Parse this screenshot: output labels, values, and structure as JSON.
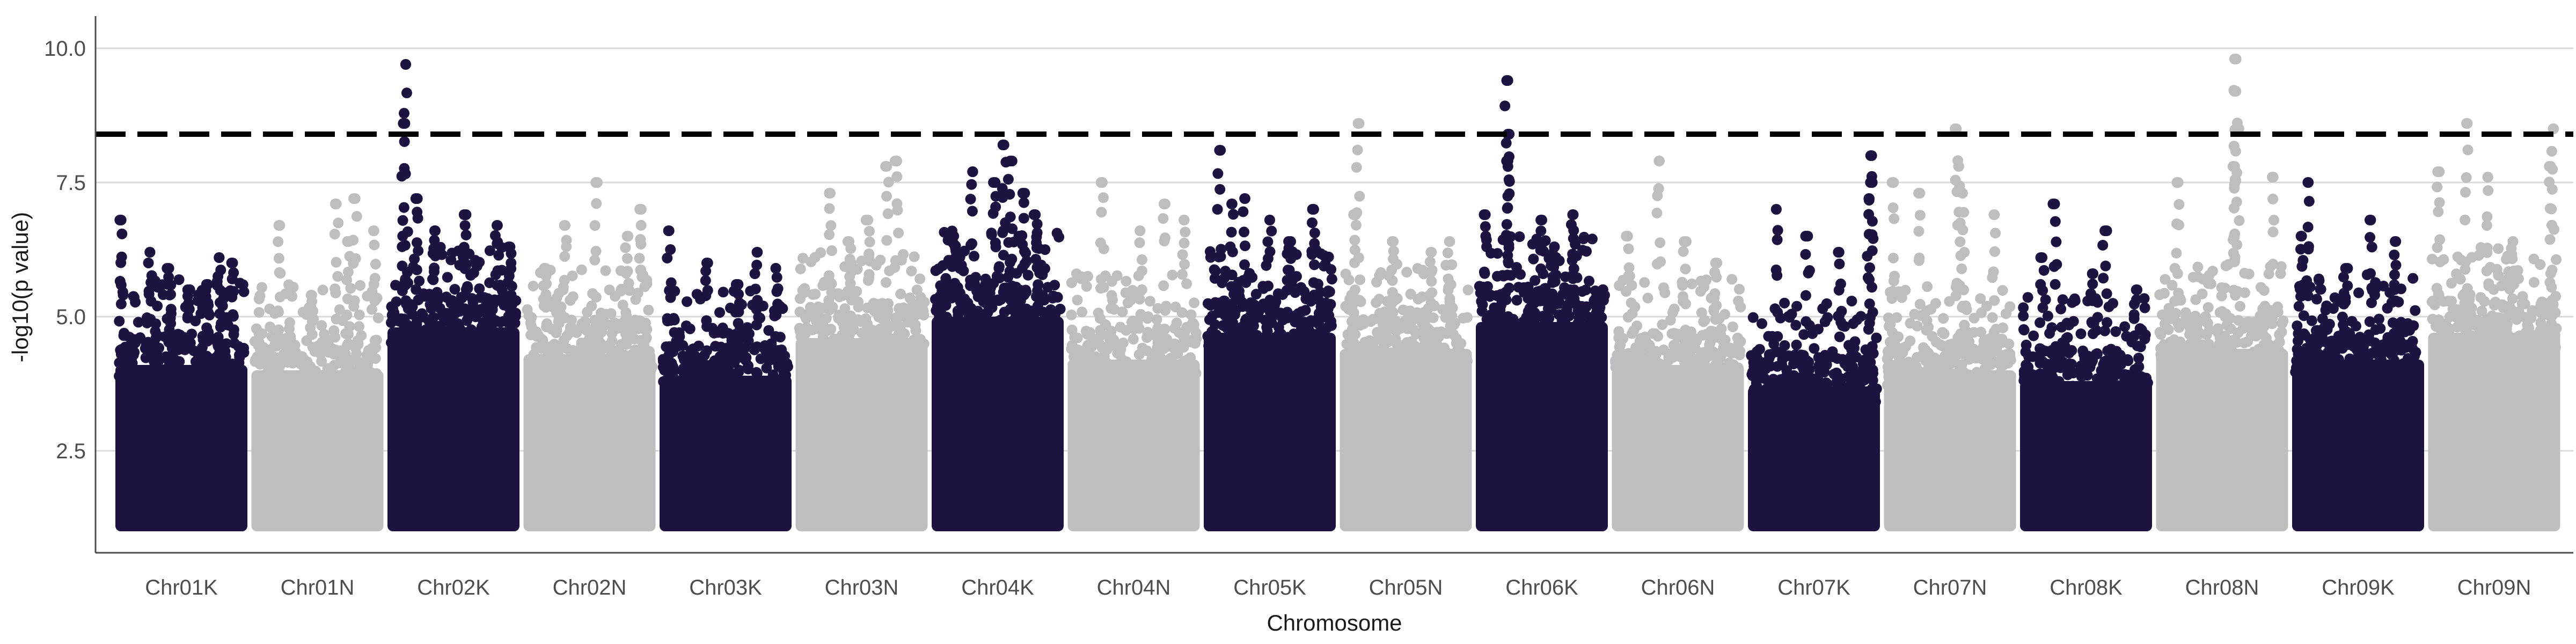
{
  "chart_data": {
    "type": "scatter",
    "subtype": "manhattan",
    "title": "",
    "xlabel": "Chromosome",
    "ylabel": "-log10(p value)",
    "ylim": [
      0.6,
      10.5
    ],
    "yticks": [
      2.5,
      5.0,
      7.5,
      10.0
    ],
    "ytick_labels": [
      "2.5",
      "5.0",
      "7.5",
      "10.0"
    ],
    "grid": "horizontal major gridlines only",
    "legend": "none",
    "threshold": 8.4,
    "threshold_style": "dashed black line",
    "colors": {
      "dark": "#1e1241",
      "light": "#bebebe",
      "threshold": "#000000",
      "grid": "#d9d9d9"
    },
    "categories": [
      "Chr01K",
      "Chr01N",
      "Chr02K",
      "Chr02N",
      "Chr03K",
      "Chr03N",
      "Chr04K",
      "Chr04N",
      "Chr05K",
      "Chr05N",
      "Chr06K",
      "Chr06N",
      "Chr07K",
      "Chr07N",
      "Chr08K",
      "Chr08N",
      "Chr09K",
      "Chr09N"
    ],
    "series": [
      {
        "chromosome": "Chr01K",
        "color": "dark",
        "bulk_top": 4.7,
        "peaks": [
          [
            0.02,
            6.8
          ],
          [
            0.25,
            6.2
          ],
          [
            0.4,
            5.9
          ],
          [
            0.7,
            5.6
          ],
          [
            0.8,
            6.1
          ],
          [
            0.9,
            6.0
          ],
          [
            0.55,
            5.5
          ]
        ]
      },
      {
        "chromosome": "Chr01N",
        "color": "light",
        "bulk_top": 4.6,
        "peaks": [
          [
            0.2,
            6.7
          ],
          [
            0.65,
            7.1
          ],
          [
            0.8,
            7.2
          ],
          [
            0.75,
            6.4
          ],
          [
            0.95,
            6.6
          ],
          [
            0.45,
            5.4
          ]
        ]
      },
      {
        "chromosome": "Chr02K",
        "color": "dark",
        "bulk_top": 5.4,
        "peaks": [
          [
            0.1,
            8.6
          ],
          [
            0.12,
            9.7
          ],
          [
            0.2,
            7.2
          ],
          [
            0.35,
            6.6
          ],
          [
            0.6,
            6.9
          ],
          [
            0.85,
            6.7
          ],
          [
            0.95,
            6.3
          ]
        ]
      },
      {
        "chromosome": "Chr02N",
        "color": "light",
        "bulk_top": 4.9,
        "peaks": [
          [
            0.3,
            6.7
          ],
          [
            0.55,
            7.5
          ],
          [
            0.8,
            6.5
          ],
          [
            0.9,
            7.0
          ],
          [
            0.15,
            5.9
          ]
        ]
      },
      {
        "chromosome": "Chr03K",
        "color": "dark",
        "bulk_top": 4.5,
        "peaks": [
          [
            0.05,
            6.6
          ],
          [
            0.35,
            6.0
          ],
          [
            0.6,
            5.6
          ],
          [
            0.75,
            6.2
          ],
          [
            0.9,
            5.9
          ]
        ]
      },
      {
        "chromosome": "Chr03N",
        "color": "light",
        "bulk_top": 5.2,
        "peaks": [
          [
            0.25,
            7.3
          ],
          [
            0.7,
            7.8
          ],
          [
            0.78,
            7.9
          ],
          [
            0.55,
            6.8
          ],
          [
            0.4,
            6.4
          ]
        ]
      },
      {
        "chromosome": "Chr04K",
        "color": "dark",
        "bulk_top": 5.6,
        "peaks": [
          [
            0.3,
            7.7
          ],
          [
            0.48,
            7.5
          ],
          [
            0.55,
            8.2
          ],
          [
            0.6,
            7.9
          ],
          [
            0.7,
            7.3
          ],
          [
            0.8,
            6.9
          ],
          [
            0.15,
            6.5
          ]
        ]
      },
      {
        "chromosome": "Chr04N",
        "color": "light",
        "bulk_top": 4.8,
        "peaks": [
          [
            0.25,
            7.5
          ],
          [
            0.55,
            6.6
          ],
          [
            0.75,
            7.1
          ],
          [
            0.9,
            6.8
          ]
        ]
      },
      {
        "chromosome": "Chr05K",
        "color": "dark",
        "bulk_top": 5.3,
        "peaks": [
          [
            0.1,
            8.1
          ],
          [
            0.2,
            7.1
          ],
          [
            0.3,
            7.2
          ],
          [
            0.5,
            6.8
          ],
          [
            0.85,
            7.0
          ],
          [
            0.65,
            6.4
          ]
        ]
      },
      {
        "chromosome": "Chr05N",
        "color": "light",
        "bulk_top": 5.0,
        "peaks": [
          [
            0.12,
            8.6
          ],
          [
            0.1,
            6.9
          ],
          [
            0.4,
            6.4
          ],
          [
            0.7,
            6.2
          ],
          [
            0.85,
            6.4
          ]
        ]
      },
      {
        "chromosome": "Chr06K",
        "color": "dark",
        "bulk_top": 5.5,
        "peaks": [
          [
            0.22,
            9.4
          ],
          [
            0.24,
            8.4
          ],
          [
            0.23,
            7.9
          ],
          [
            0.05,
            6.9
          ],
          [
            0.5,
            6.8
          ],
          [
            0.75,
            6.9
          ],
          [
            0.6,
            6.3
          ]
        ]
      },
      {
        "chromosome": "Chr06N",
        "color": "light",
        "bulk_top": 4.7,
        "peaks": [
          [
            0.1,
            6.5
          ],
          [
            0.35,
            7.9
          ],
          [
            0.55,
            6.4
          ],
          [
            0.8,
            6.0
          ]
        ]
      },
      {
        "chromosome": "Chr07K",
        "color": "dark",
        "bulk_top": 4.3,
        "peaks": [
          [
            0.2,
            7.0
          ],
          [
            0.45,
            6.5
          ],
          [
            0.7,
            6.2
          ],
          [
            0.95,
            7.5
          ],
          [
            0.96,
            8.0
          ],
          [
            0.94,
            7.2
          ]
        ]
      },
      {
        "chromosome": "Chr07N",
        "color": "light",
        "bulk_top": 4.6,
        "peaks": [
          [
            0.05,
            7.5
          ],
          [
            0.25,
            7.3
          ],
          [
            0.55,
            8.5
          ],
          [
            0.57,
            7.8
          ],
          [
            0.6,
            7.3
          ],
          [
            0.85,
            6.9
          ]
        ]
      },
      {
        "chromosome": "Chr08K",
        "color": "dark",
        "bulk_top": 4.4,
        "peaks": [
          [
            0.15,
            6.1
          ],
          [
            0.25,
            7.1
          ],
          [
            0.65,
            6.6
          ],
          [
            0.55,
            5.8
          ],
          [
            0.9,
            5.5
          ]
        ]
      },
      {
        "chromosome": "Chr08N",
        "color": "light",
        "bulk_top": 5.0,
        "peaks": [
          [
            0.6,
            9.8
          ],
          [
            0.61,
            9.2
          ],
          [
            0.62,
            8.5
          ],
          [
            0.6,
            7.8
          ],
          [
            0.15,
            7.5
          ],
          [
            0.9,
            7.6
          ]
        ]
      },
      {
        "chromosome": "Chr09K",
        "color": "dark",
        "bulk_top": 4.8,
        "peaks": [
          [
            0.05,
            6.5
          ],
          [
            0.1,
            7.5
          ],
          [
            0.6,
            6.8
          ],
          [
            0.8,
            6.4
          ],
          [
            0.4,
            5.9
          ]
        ]
      },
      {
        "chromosome": "Chr09N",
        "color": "light",
        "bulk_top": 5.3,
        "peaks": [
          [
            0.05,
            7.7
          ],
          [
            0.28,
            8.6
          ],
          [
            0.45,
            7.6
          ],
          [
            0.65,
            6.4
          ],
          [
            0.95,
            7.8
          ],
          [
            0.97,
            8.5
          ]
        ]
      }
    ]
  }
}
